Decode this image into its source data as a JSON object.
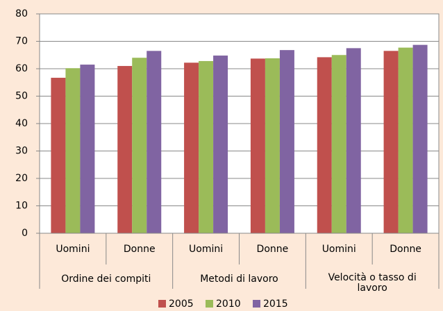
{
  "chart_data": {
    "type": "bar",
    "categories": [
      "Uomini",
      "Donne",
      "Uomini",
      "Donne",
      "Uomini",
      "Donne"
    ],
    "groups": [
      "Ordine dei compiti",
      "Metodi di lavoro",
      "Velocità o tasso di lavoro"
    ],
    "series": [
      {
        "name": "2005",
        "color": "#c0504d",
        "values": [
          56.7,
          61,
          62.2,
          63.7,
          64.2,
          66.5
        ]
      },
      {
        "name": "2010",
        "color": "#9bbb59",
        "values": [
          60.2,
          64,
          62.8,
          63.8,
          65,
          67.7
        ]
      },
      {
        "name": "2015",
        "color": "#8064a2",
        "values": [
          61.5,
          66.5,
          64.8,
          66.8,
          67.5,
          68.7
        ]
      }
    ],
    "ylim": [
      0,
      80
    ],
    "yticks": [
      0,
      10,
      20,
      30,
      40,
      50,
      60,
      70,
      80
    ],
    "grid": true,
    "legend": "bottom"
  }
}
